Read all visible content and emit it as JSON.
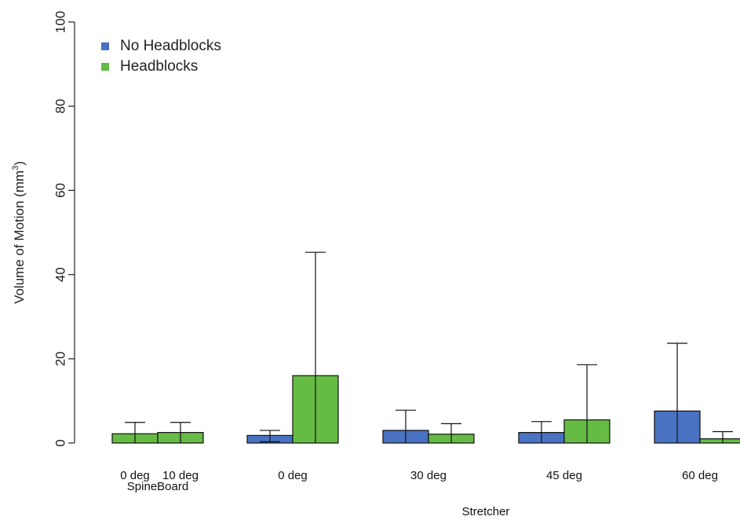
{
  "chart_data": {
    "type": "bar",
    "ylabel_base": "Volume of Motion (mm",
    "ylabel_sup": "3",
    "ylabel_close": ")",
    "ylim": [
      0,
      100
    ],
    "yticks": [
      0,
      20,
      40,
      60,
      80,
      100
    ],
    "grid": false,
    "legend_position": "top-left",
    "colors": {
      "No Headblocks": "#4a72c2",
      "Headblocks": "#66bb44"
    },
    "series": [
      {
        "name": "No Headblocks"
      },
      {
        "name": "Headblocks"
      }
    ],
    "groups": [
      {
        "name": "SpineBoard",
        "categories": [
          "0 deg",
          "10 deg"
        ],
        "bars": [
          {
            "category": "0 deg",
            "series": "Headblocks",
            "value": 2.2,
            "error_upper": 4.9,
            "error_lower": 0
          },
          {
            "category": "10 deg",
            "series": "Headblocks",
            "value": 2.5,
            "error_upper": 4.9,
            "error_lower": 0
          }
        ]
      },
      {
        "name": "Stretcher",
        "categories": [
          "0 deg",
          "30 deg",
          "45 deg",
          "60 deg"
        ],
        "bars": [
          {
            "category": "0 deg",
            "series": "No Headblocks",
            "value": 1.8,
            "error_upper": 3.0,
            "error_lower": 0.3
          },
          {
            "category": "0 deg",
            "series": "Headblocks",
            "value": 16.0,
            "error_upper": 45.3,
            "error_lower": 0
          },
          {
            "category": "30 deg",
            "series": "No Headblocks",
            "value": 3.0,
            "error_upper": 7.8,
            "error_lower": 0
          },
          {
            "category": "30 deg",
            "series": "Headblocks",
            "value": 2.1,
            "error_upper": 4.6,
            "error_lower": 0
          },
          {
            "category": "45 deg",
            "series": "No Headblocks",
            "value": 2.5,
            "error_upper": 5.1,
            "error_lower": 0
          },
          {
            "category": "45 deg",
            "series": "Headblocks",
            "value": 5.5,
            "error_upper": 18.6,
            "error_lower": 0
          },
          {
            "category": "60 deg",
            "series": "No Headblocks",
            "value": 7.6,
            "error_upper": 23.7,
            "error_lower": 0
          },
          {
            "category": "60 deg",
            "series": "Headblocks",
            "value": 1.0,
            "error_upper": 2.7,
            "error_lower": 0
          }
        ]
      }
    ]
  }
}
